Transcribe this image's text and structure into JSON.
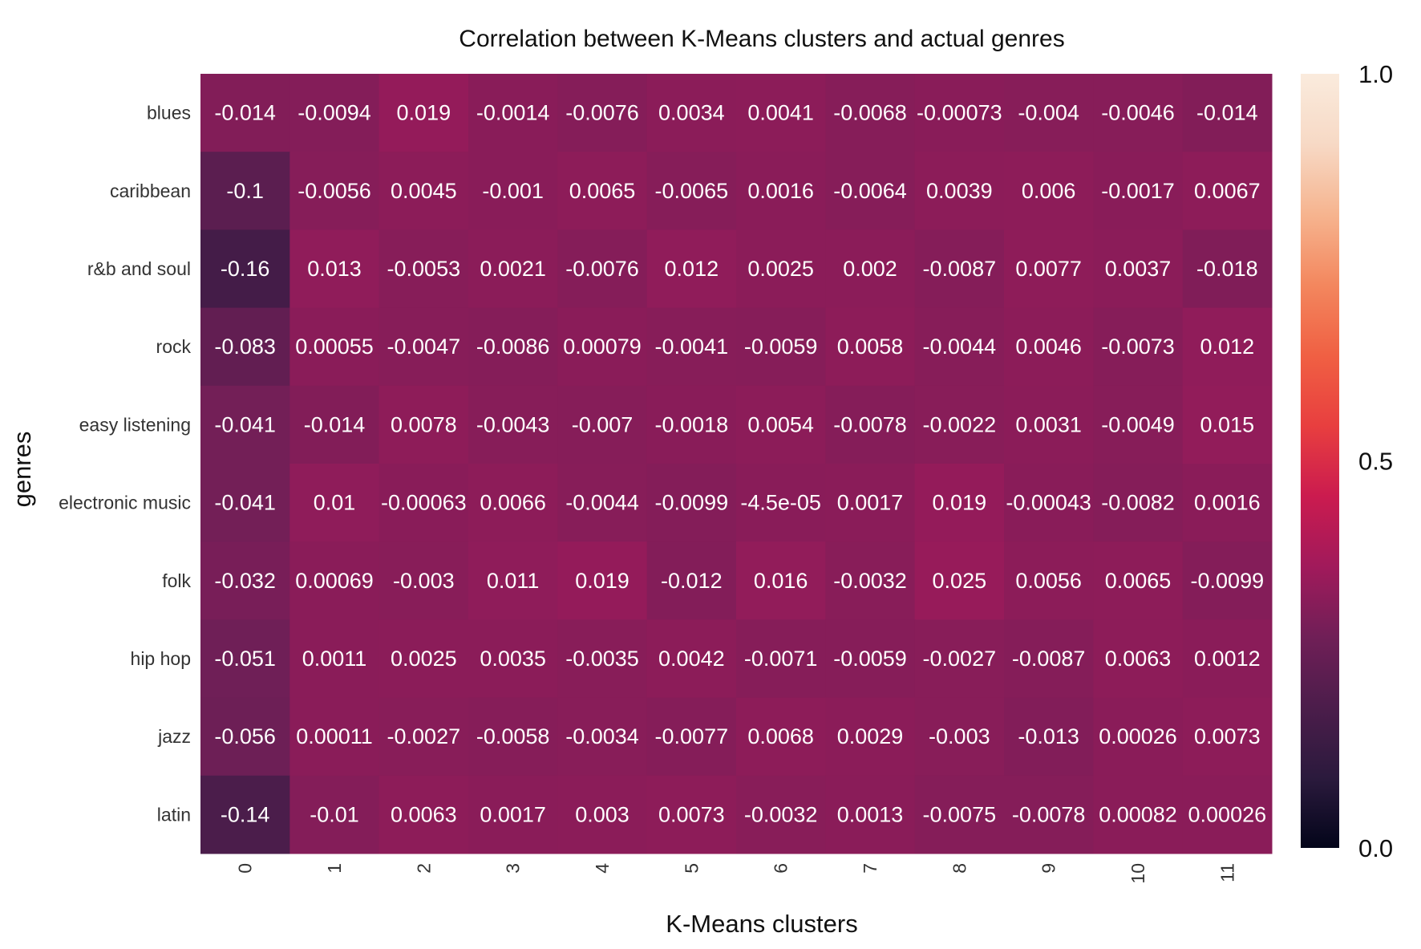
{
  "chart_data": {
    "type": "heatmap",
    "title": "Correlation between K-Means clusters and actual genres",
    "xlabel": "K-Means clusters",
    "ylabel": "genres",
    "x_categories": [
      "0",
      "1",
      "2",
      "3",
      "4",
      "5",
      "6",
      "7",
      "8",
      "9",
      "10",
      "11"
    ],
    "y_categories": [
      "blues",
      "caribbean",
      "r&b and soul",
      "rock",
      "easy listening",
      "electronic music",
      "folk",
      "hip hop",
      "jazz",
      "latin"
    ],
    "values": [
      [
        -0.014,
        -0.0094,
        0.019,
        -0.0014,
        -0.0076,
        0.0034,
        0.0041,
        -0.0068,
        -0.00073,
        -0.004,
        -0.0046,
        -0.014
      ],
      [
        -0.1,
        -0.0056,
        0.0045,
        -0.001,
        0.0065,
        -0.0065,
        0.0016,
        -0.0064,
        0.0039,
        0.006,
        -0.0017,
        0.0067
      ],
      [
        -0.16,
        0.013,
        -0.0053,
        0.0021,
        -0.0076,
        0.012,
        0.0025,
        0.002,
        -0.0087,
        0.0077,
        0.0037,
        -0.018
      ],
      [
        -0.083,
        0.00055,
        -0.0047,
        -0.0086,
        0.00079,
        -0.0041,
        -0.0059,
        0.0058,
        -0.0044,
        0.0046,
        -0.0073,
        0.012
      ],
      [
        -0.041,
        -0.014,
        0.0078,
        -0.0043,
        -0.007,
        -0.0018,
        0.0054,
        -0.0078,
        -0.0022,
        0.0031,
        -0.0049,
        0.015
      ],
      [
        -0.041,
        0.01,
        -0.00063,
        0.0066,
        -0.0044,
        -0.0099,
        -4.5e-05,
        0.0017,
        0.019,
        -0.00043,
        -0.0082,
        0.0016
      ],
      [
        -0.032,
        0.00069,
        -0.003,
        0.011,
        0.019,
        -0.012,
        0.016,
        -0.0032,
        0.025,
        0.0056,
        0.0065,
        -0.0099
      ],
      [
        -0.051,
        0.0011,
        0.0025,
        0.0035,
        -0.0035,
        0.0042,
        -0.0071,
        -0.0059,
        -0.0027,
        -0.0087,
        0.0063,
        0.0012
      ],
      [
        -0.056,
        0.00011,
        -0.0027,
        -0.0058,
        -0.0034,
        -0.0077,
        0.0068,
        0.0029,
        -0.003,
        -0.013,
        0.00026,
        0.0073
      ],
      [
        -0.14,
        -0.01,
        0.0063,
        0.0017,
        0.003,
        0.0073,
        -0.0032,
        0.0013,
        -0.0075,
        -0.0078,
        0.00082,
        0.00026
      ]
    ],
    "cell_labels": [
      [
        "-0.014",
        "-0.0094",
        "0.019",
        "-0.0014",
        "-0.0076",
        "0.0034",
        "0.0041",
        "-0.0068",
        "-0.00073",
        "-0.004",
        "-0.0046",
        "-0.014"
      ],
      [
        "-0.1",
        "-0.0056",
        "0.0045",
        "-0.001",
        "0.0065",
        "-0.0065",
        "0.0016",
        "-0.0064",
        "0.0039",
        "0.006",
        "-0.0017",
        "0.0067"
      ],
      [
        "-0.16",
        "0.013",
        "-0.0053",
        "0.0021",
        "-0.0076",
        "0.012",
        "0.0025",
        "0.002",
        "-0.0087",
        "0.0077",
        "0.0037",
        "-0.018"
      ],
      [
        "-0.083",
        "0.00055",
        "-0.0047",
        "-0.0086",
        "0.00079",
        "-0.0041",
        "-0.0059",
        "0.0058",
        "-0.0044",
        "0.0046",
        "-0.0073",
        "0.012"
      ],
      [
        "-0.041",
        "-0.014",
        "0.0078",
        "-0.0043",
        "-0.007",
        "-0.0018",
        "0.0054",
        "-0.0078",
        "-0.0022",
        "0.0031",
        "-0.0049",
        "0.015"
      ],
      [
        "-0.041",
        "0.01",
        "-0.00063",
        "0.0066",
        "-0.0044",
        "-0.0099",
        "-4.5e-05",
        "0.0017",
        "0.019",
        "-0.00043",
        "-0.0082",
        "0.0016"
      ],
      [
        "-0.032",
        "0.00069",
        "-0.003",
        "0.011",
        "0.019",
        "-0.012",
        "0.016",
        "-0.0032",
        "0.025",
        "0.0056",
        "0.0065",
        "-0.0099"
      ],
      [
        "-0.051",
        "0.0011",
        "0.0025",
        "0.0035",
        "-0.0035",
        "0.0042",
        "-0.0071",
        "-0.0059",
        "-0.0027",
        "-0.0087",
        "0.0063",
        "0.0012"
      ],
      [
        "-0.056",
        "0.00011",
        "-0.0027",
        "-0.0058",
        "-0.0034",
        "-0.0077",
        "0.0068",
        "0.0029",
        "-0.003",
        "-0.013",
        "0.00026",
        "0.0073"
      ],
      [
        "-0.14",
        "-0.01",
        "0.0063",
        "0.0017",
        "0.003",
        "0.0073",
        "-0.0032",
        "0.0013",
        "-0.0075",
        "-0.0078",
        "0.00082",
        "0.00026"
      ]
    ],
    "colorbar": {
      "range": [
        0.0,
        1.0
      ],
      "ticks": [
        "0.0",
        "0.5",
        "1.0"
      ],
      "colormap": "rocket",
      "colors": [
        "#03051a",
        "#2b1a3d",
        "#4c1d4b",
        "#701f57",
        "#a11a5b",
        "#cb1b4f",
        "#e83f3f",
        "#f06043",
        "#f3875e",
        "#f6b48f",
        "#f7d9c5",
        "#faebdd"
      ]
    },
    "grid": false
  }
}
